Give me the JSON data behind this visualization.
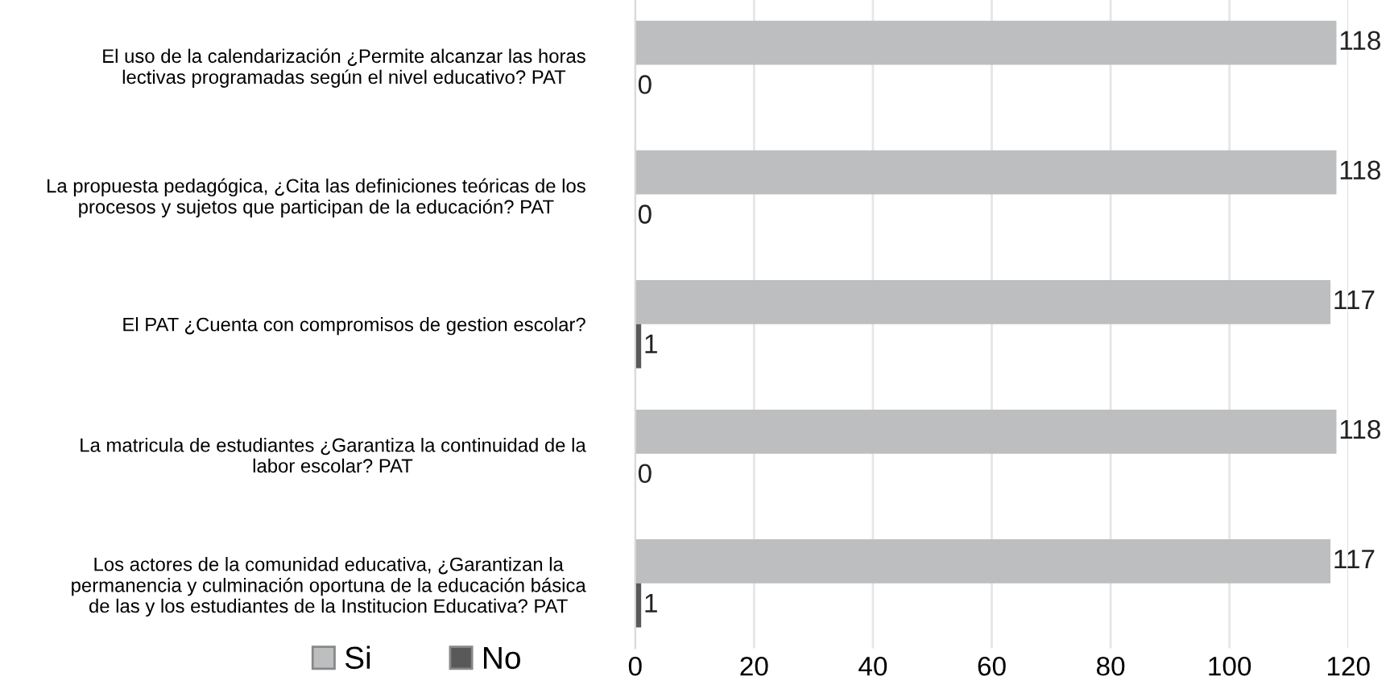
{
  "chart_data": {
    "type": "bar",
    "orientation": "horizontal",
    "categories": [
      "El uso de la calendarización ¿Permite alcanzar las horas\nlectivas programadas según el nivel educativo? PAT",
      "La propuesta pedagógica, ¿Cita las definiciones teóricas de los\nprocesos y sujetos que participan de la educación? PAT",
      "El PAT ¿Cuenta con compromisos de gestion escolar?",
      "La matricula de estudiantes ¿Garantiza la continuidad de la\nlabor escolar? PAT",
      "Los actores de la comunidad educativa, ¿Garantizan la\npermanencia y culminación oportuna de la educación básica\nde las y los estudiantes de la Institucion Educativa? PAT"
    ],
    "series": [
      {
        "name": "Si",
        "color": "#bdbebf",
        "values": [
          118,
          118,
          117,
          118,
          117
        ]
      },
      {
        "name": "No",
        "color": "#595959",
        "values": [
          0,
          0,
          1,
          0,
          1
        ]
      }
    ],
    "xlim": [
      0,
      120
    ],
    "xticks": [
      0,
      20,
      40,
      60,
      80,
      100,
      120
    ],
    "grid": "x",
    "legend": "bottom left",
    "data_labels": true
  }
}
